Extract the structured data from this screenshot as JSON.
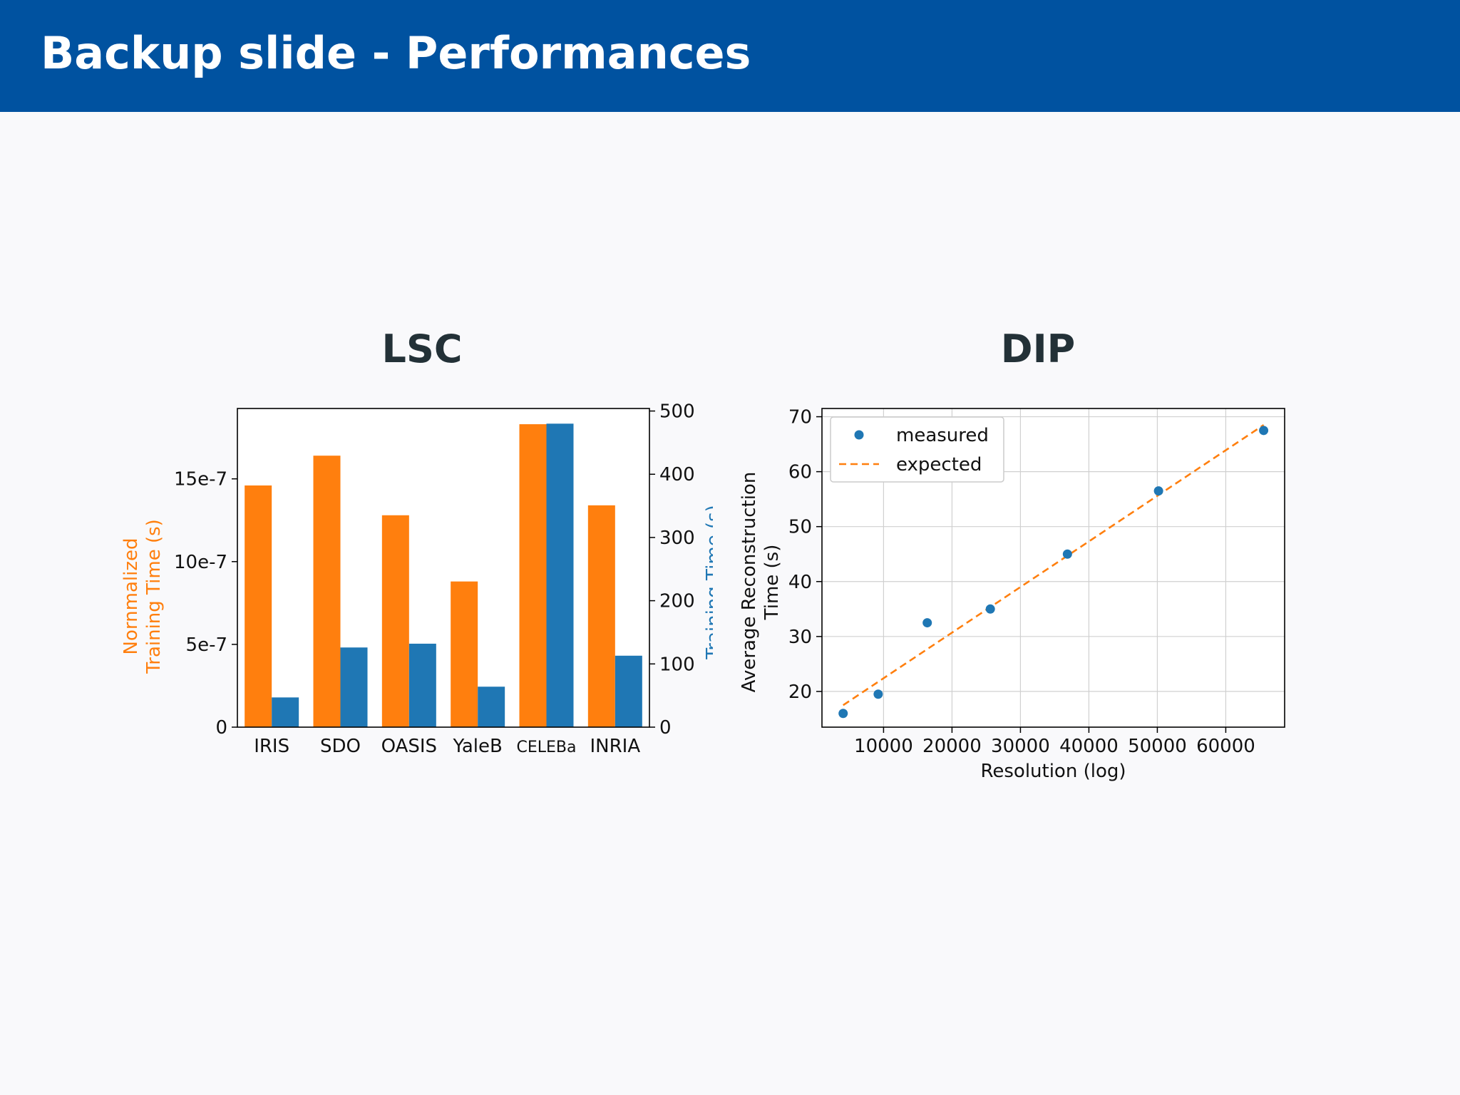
{
  "slide": {
    "title": "Backup slide - Performances"
  },
  "colors": {
    "header_bg": "#0052a0",
    "orange": "#ff7f0e",
    "blue": "#1f77b4",
    "panel_title": "#233137"
  },
  "chart_data": [
    {
      "id": "lsc",
      "type": "bar",
      "title": "LSC",
      "categories": [
        "IRIS",
        "SDO",
        "OASIS",
        "YaleB",
        "CELEBa",
        "INRIA"
      ],
      "series": [
        {
          "axis": "left",
          "color": "#ff7f0e",
          "values": [
            1.46e-06,
            1.64e-06,
            1.28e-06,
            8.8e-07,
            1.83e-06,
            1.34e-06
          ]
        },
        {
          "axis": "right",
          "color": "#1f77b4",
          "values": [
            47,
            126,
            132,
            64,
            480,
            113
          ]
        }
      ],
      "ylabel_left": [
        "Nornmalized",
        "Training Time (s)"
      ],
      "ylabel_right": "Training Time (s)",
      "yticks_left": [
        "0",
        "5e-7",
        "10e-7",
        "15e-7"
      ],
      "yticks_left_values": [
        0,
        5e-07,
        1e-06,
        1.5e-06
      ],
      "yticks_right": [
        "0",
        "100",
        "200",
        "300",
        "400",
        "500"
      ],
      "yticks_right_values": [
        0,
        100,
        200,
        300,
        400,
        500
      ],
      "ylim_left": [
        0,
        1.925e-06
      ],
      "ylim_right": [
        0,
        504
      ],
      "grid": false
    },
    {
      "id": "dip",
      "type": "scatter",
      "title": "DIP",
      "series": [
        {
          "name": "measured",
          "color": "#1f77b4",
          "x": [
            4096,
            9216,
            16384,
            25600,
            36864,
            50176,
            65536
          ],
          "y": [
            16,
            19.5,
            32.5,
            35,
            45,
            56.5,
            67.5
          ]
        },
        {
          "name": "expected",
          "color": "#ff7f0e",
          "style": "dashed",
          "x": [
            4096,
            65536
          ],
          "y": [
            17.5,
            68.5
          ]
        }
      ],
      "xlabel": "Resolution (log)",
      "ylabel": [
        "Average Reconstruction",
        "Time (s)"
      ],
      "xticks": [
        "10000",
        "20000",
        "30000",
        "40000",
        "50000",
        "60000"
      ],
      "xticks_values": [
        10000,
        20000,
        30000,
        40000,
        50000,
        60000
      ],
      "yticks": [
        "20",
        "30",
        "40",
        "50",
        "60",
        "70"
      ],
      "yticks_values": [
        20,
        30,
        40,
        50,
        60,
        70
      ],
      "xlim": [
        1000,
        68600
      ],
      "ylim": [
        13.5,
        71.5
      ],
      "grid": true,
      "legend": "top-left"
    }
  ]
}
